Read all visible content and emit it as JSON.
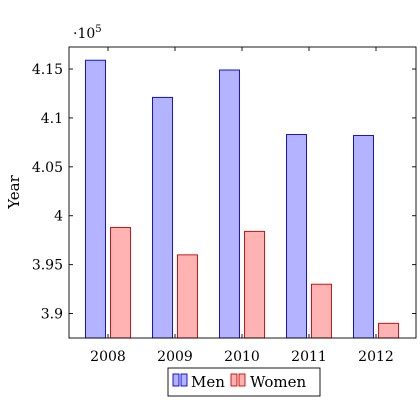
{
  "chart_data": {
    "type": "bar",
    "title": "",
    "xlabel": "",
    "ylabel": "Year",
    "scale_label": "·10",
    "scale_exponent": "5",
    "categories": [
      "2008",
      "2009",
      "2010",
      "2011",
      "2012"
    ],
    "series": [
      {
        "name": "Men",
        "values": [
          415900,
          412100,
          414900,
          408300,
          408200
        ],
        "color": "#b3b3ff",
        "stroke": "#0000cc"
      },
      {
        "name": "Women",
        "values": [
          398800,
          396000,
          398400,
          393000,
          389000
        ],
        "color": "#ffb3b3",
        "stroke": "#cc0000"
      }
    ],
    "ylim": [
      387500,
      417250
    ],
    "yticks": [
      390000,
      395000,
      400000,
      405000,
      410000,
      415000
    ],
    "ytick_labels": [
      "3.9",
      "3.95",
      "4",
      "4.05",
      "4.1",
      "4.15"
    ],
    "grid": false,
    "legend_position": "bottom-center"
  }
}
